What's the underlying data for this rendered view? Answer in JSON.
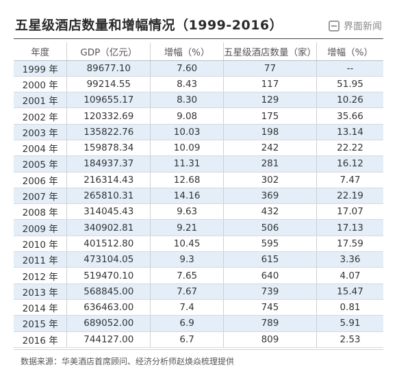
{
  "title": "五星级酒店数量和增幅情况（1999-2016）",
  "brand": "界面新闻",
  "headers": [
    "年度",
    "GDP（亿元）",
    "增幅（%）",
    "五星级酒店数量（家）",
    "增幅（%）"
  ],
  "rows": [
    [
      "1999 年",
      "89677.10",
      "7.60",
      "77",
      "--"
    ],
    [
      "2000 年",
      "99214.55",
      "8.43",
      "117",
      "51.95"
    ],
    [
      "2001 年",
      "109655.17",
      "8.30",
      "129",
      "10.26"
    ],
    [
      "2002 年",
      "120332.69",
      "9.08",
      "175",
      "35.66"
    ],
    [
      "2003 年",
      "135822.76",
      "10.03",
      "198",
      "13.14"
    ],
    [
      "2004 年",
      "159878.34",
      "10.09",
      "242",
      "22.22"
    ],
    [
      "2005 年",
      "184937.37",
      "11.31",
      "281",
      "16.12"
    ],
    [
      "2006 年",
      "216314.43",
      "12.68",
      "302",
      "7.47"
    ],
    [
      "2007 年",
      "265810.31",
      "14.16",
      "369",
      "22.19"
    ],
    [
      "2008 年",
      "314045.43",
      "9.63",
      "432",
      "17.07"
    ],
    [
      "2009 年",
      "340902.81",
      "9.21",
      "506",
      "17.13"
    ],
    [
      "2010 年",
      "401512.80",
      "10.45",
      "595",
      "17.59"
    ],
    [
      "2011 年",
      "473104.05",
      "9.3",
      "615",
      "3.36"
    ],
    [
      "2012 年",
      "519470.10",
      "7.65",
      "640",
      "4.07"
    ],
    [
      "2013 年",
      "568845.00",
      "7.67",
      "739",
      "15.47"
    ],
    [
      "2014 年",
      "636463.00",
      "7.4",
      "745",
      "0.81"
    ],
    [
      "2015 年",
      "689052.00",
      "6.9",
      "789",
      "5.91"
    ],
    [
      "2016 年",
      "744127.00",
      "6.7",
      "809",
      "2.53"
    ]
  ],
  "source": "数据来源：华美酒店首席顾问、经济分析师赵焕焱梳理提供",
  "colors": {
    "row_alt": "#e3eef8",
    "rule": "#444444"
  }
}
